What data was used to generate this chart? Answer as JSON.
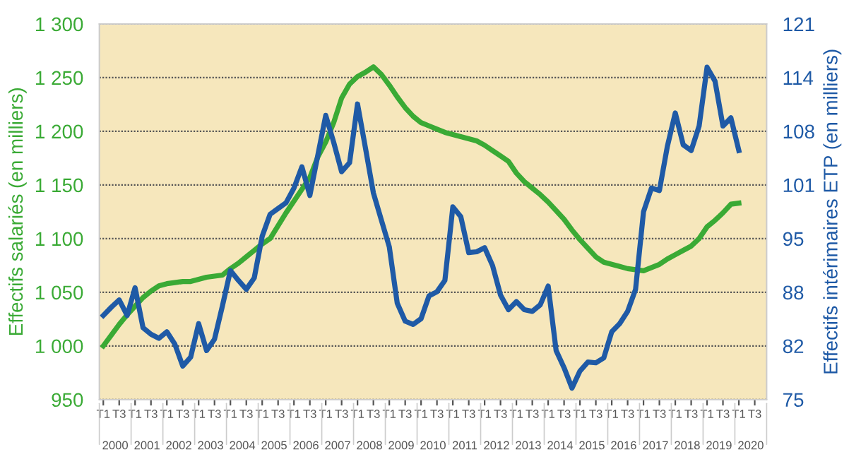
{
  "chart_data": {
    "type": "line",
    "ylabel": "Effectifs salariés (en milliers)",
    "y2label": "Effectifs intérimaires ETP (en milliers)",
    "ylim": [
      950,
      1300
    ],
    "yticks": [
      {
        "value": 950,
        "label": "950"
      },
      {
        "value": 1000,
        "label": "1 000"
      },
      {
        "value": 1050,
        "label": "1 050"
      },
      {
        "value": 1100,
        "label": "1 100"
      },
      {
        "value": 1150,
        "label": "1 150"
      },
      {
        "value": 1200,
        "label": "1 200"
      },
      {
        "value": 1250,
        "label": "1 250"
      },
      {
        "value": 1300,
        "label": "1 300"
      }
    ],
    "y2lim": [
      75,
      121
    ],
    "y2ticks": [
      75,
      {
        "value": 81.57,
        "label": "82"
      },
      {
        "value": 88.14,
        "label": "88"
      },
      {
        "value": 94.71,
        "label": "95"
      },
      {
        "value": 101.29,
        "label": "101"
      },
      {
        "value": 107.86,
        "label": "108"
      },
      {
        "value": 114.43,
        "label": "114"
      },
      121
    ],
    "categories": [
      "T1",
      null,
      "T3",
      null,
      "T1",
      null,
      "T3",
      null,
      "T1",
      null,
      "T3",
      null,
      "T1",
      null,
      "T3",
      null,
      "T1",
      null,
      "T3",
      null,
      "T1",
      null,
      "T3",
      null,
      "T1",
      null,
      "T3",
      null,
      "T1",
      null,
      "T3",
      null,
      "T1",
      null,
      "T3",
      null,
      "T1",
      null,
      "T3",
      null,
      "T1",
      null,
      "T3",
      null,
      "T1",
      null,
      "T3",
      null,
      "T1",
      null,
      "T3",
      null,
      "T1",
      null,
      "T3",
      null,
      "T1",
      null,
      "T3",
      null,
      "T1",
      null,
      "T3",
      null,
      "T1",
      null,
      "T3",
      null,
      "T1",
      null,
      "T3",
      null,
      "T1",
      null,
      "T3",
      null,
      "T1",
      null,
      "T3",
      null,
      "T1",
      null,
      "T3",
      null
    ],
    "annotations": [
      "2000",
      "2001",
      "2002",
      "2003",
      "2004",
      "2005",
      "2006",
      "2007",
      "2008",
      "2009",
      "2010",
      "2011",
      "2012",
      "2013",
      "2014",
      "2015",
      "2016",
      "2017",
      "2018",
      "2019",
      "2020"
    ],
    "grid": "y",
    "legend": false,
    "marker": "none",
    "line_style": "solid",
    "series": [
      {
        "color": "#3aaa35",
        "values": [
          1000,
          1010,
          1020,
          1029,
          1037,
          1045,
          1051,
          1056,
          1058,
          1059,
          1060,
          1060,
          1062,
          1064,
          1065,
          1066,
          1072,
          1077,
          1083,
          1089,
          1095,
          1100,
          1112,
          1124,
          1135,
          1146,
          1157,
          1176,
          1190,
          1208,
          1231,
          1244,
          1251,
          1255,
          1260,
          1253,
          1243,
          1232,
          1222,
          1214,
          1208,
          1205,
          1202,
          1199,
          1197,
          1195,
          1193,
          1191,
          1187,
          1182,
          1177,
          1172,
          1161,
          1153,
          1147,
          1141,
          1134,
          1126,
          1118,
          1108,
          1099,
          1091,
          1083,
          1078,
          1076,
          1074,
          1072,
          1071,
          1070,
          1073,
          1076,
          1081,
          1085,
          1089,
          1093,
          1100,
          1111,
          1117,
          1124,
          1132,
          1133,
          null,
          null,
          null
        ]
      },
      {
        "color": "#1f5aa6",
        "axis": "y2",
        "values": [
          85.3,
          86.3,
          87.2,
          85.3,
          88.7,
          83.8,
          83.0,
          82.5,
          83.3,
          81.8,
          79.1,
          80.2,
          84.3,
          81.0,
          82.4,
          86.5,
          90.8,
          89.6,
          88.5,
          89.9,
          95.0,
          97.7,
          98.4,
          99.1,
          100.9,
          103.5,
          100.0,
          104.9,
          109.8,
          106.5,
          102.9,
          104.0,
          111.2,
          105.8,
          100.3,
          97.0,
          93.7,
          86.8,
          84.6,
          84.2,
          84.9,
          87.7,
          88.2,
          89.6,
          98.6,
          97.4,
          93.0,
          93.1,
          93.6,
          91.4,
          87.8,
          86.0,
          87.0,
          86.0,
          85.8,
          86.6,
          88.9,
          81.0,
          78.9,
          76.4,
          78.5,
          79.6,
          79.5,
          80.1,
          83.3,
          84.3,
          85.8,
          88.5,
          98.0,
          100.9,
          100.6,
          106.0,
          110.1,
          106.2,
          105.5,
          108.5,
          115.7,
          114.0,
          108.5,
          109.5,
          105.5,
          null,
          null,
          null
        ]
      }
    ]
  }
}
